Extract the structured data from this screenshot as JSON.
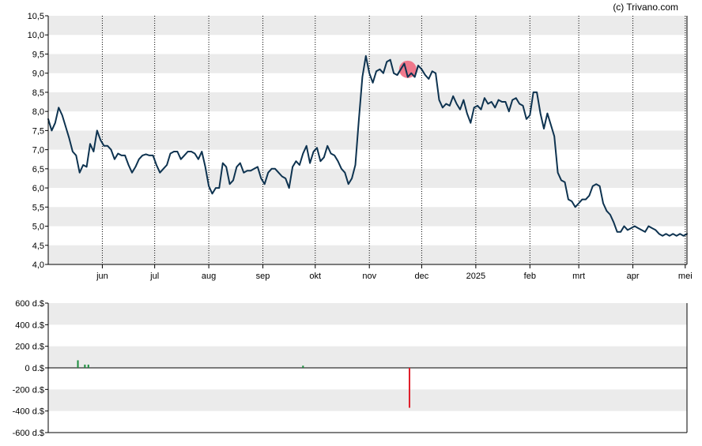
{
  "credit": "(c) Trivano.com",
  "colors": {
    "band": "#ebebeb",
    "line": "#0e3350",
    "grid": "#000000",
    "marker": "#f0647a",
    "buy": "#1a8c3c",
    "sell": "#e01e2a"
  },
  "chart_data": [
    {
      "type": "line",
      "title": "",
      "xlabel": "",
      "ylabel": "",
      "ylim": [
        4.0,
        10.5
      ],
      "y_ticks": [
        "4,0",
        "4,5",
        "5,0",
        "5,5",
        "6,0",
        "6,5",
        "7,0",
        "7,5",
        "8,0",
        "8,5",
        "9,0",
        "9,5",
        "10,0",
        "10,5"
      ],
      "x_ticks": [
        "jun",
        "jul",
        "aug",
        "sep",
        "okt",
        "nov",
        "dec",
        "2025",
        "feb",
        "mrt",
        "apr",
        "mei"
      ],
      "grid": "dotted vertical lines at month ticks, alternating horizontal bands",
      "marker": {
        "x": "2024-11-23",
        "y": 9.1
      },
      "series": [
        {
          "x": [
            "2024-05-01",
            "2024-05-03",
            "2024-05-05",
            "2024-05-07",
            "2024-05-09",
            "2024-05-11",
            "2024-05-13",
            "2024-05-15",
            "2024-05-17",
            "2024-05-19",
            "2024-05-21",
            "2024-05-23",
            "2024-05-25",
            "2024-05-27",
            "2024-05-29",
            "2024-05-31",
            "2024-06-02",
            "2024-06-04",
            "2024-06-06",
            "2024-06-08",
            "2024-06-10",
            "2024-06-12",
            "2024-06-14",
            "2024-06-16",
            "2024-06-18",
            "2024-06-20",
            "2024-06-22",
            "2024-06-24",
            "2024-06-26",
            "2024-06-28",
            "2024-06-30",
            "2024-07-02",
            "2024-07-04",
            "2024-07-06",
            "2024-07-08",
            "2024-07-10",
            "2024-07-12",
            "2024-07-14",
            "2024-07-16",
            "2024-07-18",
            "2024-07-20",
            "2024-07-22",
            "2024-07-24",
            "2024-07-26",
            "2024-07-28",
            "2024-07-30",
            "2024-08-01",
            "2024-08-03",
            "2024-08-05",
            "2024-08-07",
            "2024-08-09",
            "2024-08-11",
            "2024-08-13",
            "2024-08-15",
            "2024-08-17",
            "2024-08-19",
            "2024-08-21",
            "2024-08-23",
            "2024-08-25",
            "2024-08-27",
            "2024-08-29",
            "2024-08-31",
            "2024-09-02",
            "2024-09-04",
            "2024-09-06",
            "2024-09-08",
            "2024-09-10",
            "2024-09-12",
            "2024-09-14",
            "2024-09-16",
            "2024-09-18",
            "2024-09-20",
            "2024-09-22",
            "2024-09-24",
            "2024-09-26",
            "2024-09-28",
            "2024-09-30",
            "2024-10-02",
            "2024-10-04",
            "2024-10-06",
            "2024-10-08",
            "2024-10-10",
            "2024-10-12",
            "2024-10-14",
            "2024-10-16",
            "2024-10-18",
            "2024-10-20",
            "2024-10-22",
            "2024-10-24",
            "2024-10-26",
            "2024-10-28",
            "2024-10-30",
            "2024-11-01",
            "2024-11-03",
            "2024-11-05",
            "2024-11-07",
            "2024-11-09",
            "2024-11-11",
            "2024-11-13",
            "2024-11-15",
            "2024-11-17",
            "2024-11-19",
            "2024-11-21",
            "2024-11-23",
            "2024-11-25",
            "2024-11-27",
            "2024-11-29",
            "2024-12-01",
            "2024-12-03",
            "2024-12-05",
            "2024-12-07",
            "2024-12-09",
            "2024-12-11",
            "2024-12-13",
            "2024-12-15",
            "2024-12-17",
            "2024-12-19",
            "2024-12-21",
            "2024-12-23",
            "2024-12-25",
            "2024-12-27",
            "2024-12-29",
            "2024-12-31",
            "2025-01-02",
            "2025-01-04",
            "2025-01-06",
            "2025-01-08",
            "2025-01-10",
            "2025-01-12",
            "2025-01-14",
            "2025-01-16",
            "2025-01-18",
            "2025-01-20",
            "2025-01-22",
            "2025-01-24",
            "2025-01-26",
            "2025-01-28",
            "2025-01-30",
            "2025-02-01",
            "2025-02-03",
            "2025-02-05",
            "2025-02-07",
            "2025-02-09",
            "2025-02-11",
            "2025-02-13",
            "2025-02-15",
            "2025-02-17",
            "2025-02-19",
            "2025-02-21",
            "2025-02-23",
            "2025-02-25",
            "2025-02-27",
            "2025-03-01",
            "2025-03-03",
            "2025-03-05",
            "2025-03-07",
            "2025-03-09",
            "2025-03-11",
            "2025-03-13",
            "2025-03-15",
            "2025-03-17",
            "2025-03-19",
            "2025-03-21",
            "2025-03-23",
            "2025-03-25",
            "2025-03-27",
            "2025-03-29",
            "2025-03-31",
            "2025-04-02",
            "2025-04-04",
            "2025-04-06",
            "2025-04-08",
            "2025-04-10",
            "2025-04-12",
            "2025-04-14",
            "2025-04-16",
            "2025-04-18",
            "2025-04-20",
            "2025-04-22",
            "2025-04-24",
            "2025-04-26",
            "2025-04-28",
            "2025-04-30",
            "2025-05-02"
          ],
          "values": [
            7.8,
            7.5,
            7.7,
            8.1,
            7.9,
            7.6,
            7.3,
            6.95,
            6.85,
            6.4,
            6.6,
            6.55,
            7.15,
            6.95,
            7.5,
            7.25,
            7.1,
            7.1,
            7.0,
            6.75,
            6.9,
            6.85,
            6.85,
            6.6,
            6.4,
            6.55,
            6.75,
            6.85,
            6.88,
            6.85,
            6.85,
            6.6,
            6.4,
            6.5,
            6.6,
            6.9,
            6.95,
            6.95,
            6.75,
            6.85,
            6.95,
            6.95,
            6.9,
            6.75,
            6.95,
            6.55,
            6.05,
            5.85,
            6.0,
            6.0,
            6.65,
            6.55,
            6.1,
            6.2,
            6.55,
            6.65,
            6.4,
            6.45,
            6.45,
            6.5,
            6.55,
            6.25,
            6.1,
            6.4,
            6.5,
            6.5,
            6.4,
            6.3,
            6.25,
            6.0,
            6.55,
            6.7,
            6.6,
            6.9,
            7.1,
            6.65,
            6.95,
            7.05,
            6.7,
            6.8,
            7.1,
            6.9,
            6.85,
            6.7,
            6.5,
            6.4,
            6.1,
            6.25,
            6.6,
            7.8,
            8.9,
            9.45,
            9.0,
            8.75,
            9.05,
            9.1,
            9.0,
            9.3,
            9.35,
            9.0,
            8.95,
            9.1,
            9.25,
            8.9,
            9.0,
            8.9,
            9.2,
            9.1,
            8.95,
            8.85,
            9.05,
            9.0,
            8.3,
            8.1,
            8.2,
            8.15,
            8.4,
            8.2,
            8.05,
            8.3,
            7.95,
            7.7,
            8.1,
            8.15,
            8.05,
            8.35,
            8.2,
            8.25,
            8.1,
            8.3,
            8.25,
            8.25,
            8.0,
            8.3,
            8.35,
            8.2,
            8.15,
            7.8,
            7.9,
            8.5,
            8.5,
            7.95,
            7.55,
            7.95,
            7.65,
            7.35,
            6.4,
            6.2,
            6.15,
            5.7,
            5.65,
            5.5,
            5.6,
            5.7,
            5.7,
            5.8,
            6.05,
            6.1,
            6.05,
            5.6,
            5.4,
            5.3,
            5.1,
            4.85,
            4.85,
            5.0,
            4.9,
            4.95,
            5.0,
            4.95,
            4.9,
            4.85,
            5.0,
            4.95,
            4.9,
            4.8,
            4.75,
            4.8,
            4.75,
            4.8,
            4.75,
            4.8,
            4.75,
            4.8
          ]
        }
      ]
    },
    {
      "type": "bar",
      "title": "",
      "xlabel": "",
      "ylabel": "",
      "ylim": [
        -600,
        600
      ],
      "y_ticks": [
        "600 d.$",
        "400 d.$",
        "200 d.$",
        "0 d.$",
        "-200 d.$",
        "-400 d.$",
        "-600 d.$"
      ],
      "grid": "alternating horizontal bands",
      "bars": [
        {
          "x": "2024-05-18",
          "value": 70
        },
        {
          "x": "2024-05-22",
          "value": 30
        },
        {
          "x": "2024-05-24",
          "value": 30
        },
        {
          "x": "2024-09-24",
          "value": 20
        },
        {
          "x": "2024-11-24",
          "value": -370
        }
      ]
    }
  ]
}
